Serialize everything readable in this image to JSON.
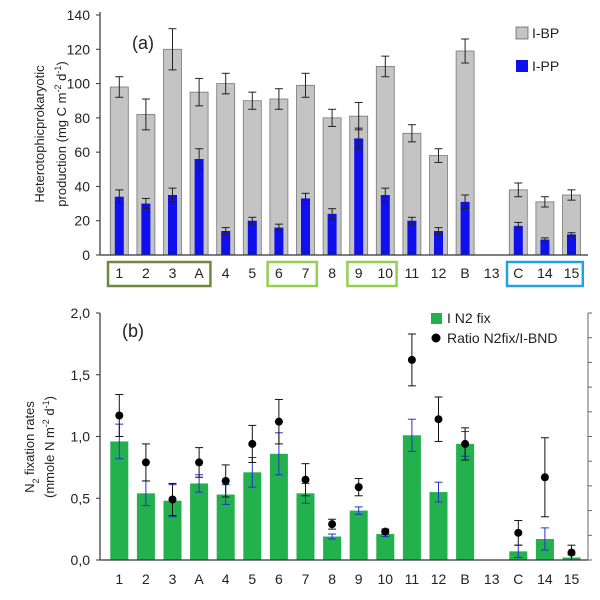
{
  "colors": {
    "ibp": "#c4c4c4",
    "ipp": "#1010ee",
    "n2fix": "#22b14c",
    "ratio": "#000000",
    "group_dark_green": "#6d8b3a",
    "group_light_green": "#92d050",
    "group_blue": "#21a3e0"
  },
  "chart_data": [
    {
      "panel": "(a)",
      "type": "bar",
      "ylabel_line1": "Heterotophicprokaryotic",
      "ylabel_line2": "production (mg C m",
      "ylabel_sup1": "-2",
      "ylabel_mid": " d",
      "ylabel_sup2": "-1",
      "ylabel_end": ")",
      "ylim": [
        0,
        140
      ],
      "yticks": [
        "0",
        "20",
        "40",
        "60",
        "80",
        "100",
        "120",
        "140"
      ],
      "categories": [
        "1",
        "2",
        "3",
        "A",
        "4",
        "5",
        "6",
        "7",
        "8",
        "9",
        "10",
        "11",
        "12",
        "B",
        "13",
        "C",
        "14",
        "15"
      ],
      "series": [
        {
          "name": "I-BP",
          "color_key": "ibp",
          "values": [
            98,
            82,
            120,
            95,
            100,
            90,
            91,
            99,
            80,
            81,
            110,
            71,
            58,
            119,
            null,
            38,
            31,
            35
          ],
          "errors": [
            6,
            9,
            12,
            8,
            6,
            5,
            6,
            7,
            5,
            8,
            6,
            5,
            4,
            7,
            null,
            4,
            3,
            3
          ]
        },
        {
          "name": "I-PP",
          "color_key": "ipp",
          "values": [
            34,
            30,
            35,
            56,
            14,
            20,
            16,
            33,
            24,
            68,
            35,
            20,
            14,
            31,
            null,
            17,
            9,
            12
          ],
          "errors": [
            4,
            3,
            4,
            6,
            2,
            2,
            2,
            3,
            3,
            6,
            4,
            2,
            2,
            4,
            null,
            2,
            1,
            1
          ]
        }
      ],
      "groups": [
        {
          "labels": [
            "1",
            "2",
            "3",
            "A"
          ],
          "color_key": "group_dark_green"
        },
        {
          "labels": [
            "6",
            "7"
          ],
          "color_key": "group_light_green"
        },
        {
          "labels": [
            "9",
            "10"
          ],
          "color_key": "group_light_green"
        },
        {
          "labels": [
            "C",
            "14",
            "15"
          ],
          "color_key": "group_blue"
        }
      ]
    },
    {
      "panel": "(b)",
      "type": "bar+scatter",
      "ylabel_line1_a": "N",
      "ylabel_line1_sub": "2",
      "ylabel_line1_b": " fixation rates",
      "ylabel_line2": "(mmole N m",
      "ylabel_sup1": "-2",
      "ylabel_mid": " d",
      "ylabel_sup2": "-1",
      "ylabel_end": ")",
      "ylim": [
        0,
        2.0
      ],
      "yticks": [
        "0,0",
        "0,5",
        "1,0",
        "1,5",
        "2,0"
      ],
      "categories": [
        "1",
        "2",
        "3",
        "A",
        "4",
        "5",
        "6",
        "7",
        "8",
        "9",
        "10",
        "11",
        "12",
        "B",
        "13",
        "C",
        "14",
        "15"
      ],
      "series": [
        {
          "name": "I N2 fix",
          "color_key": "n2fix",
          "kind": "bar",
          "values": [
            0.96,
            0.54,
            0.48,
            0.62,
            0.53,
            0.71,
            0.86,
            0.54,
            0.19,
            0.4,
            0.21,
            1.01,
            0.55,
            0.94,
            null,
            0.07,
            0.17,
            0.02
          ],
          "errors": [
            0.14,
            0.1,
            0.13,
            0.07,
            0.08,
            0.12,
            0.17,
            0.08,
            0.02,
            0.03,
            0.02,
            0.13,
            0.08,
            0.1,
            null,
            0.05,
            0.09,
            0.02
          ]
        },
        {
          "name": "Ratio N2fix/I-BND",
          "color_key": "ratio",
          "kind": "scatter",
          "values": [
            1.17,
            0.79,
            0.49,
            0.79,
            0.64,
            0.94,
            1.12,
            0.65,
            0.29,
            0.59,
            0.23,
            1.62,
            1.14,
            0.94,
            null,
            0.22,
            0.67,
            0.06
          ],
          "errors": [
            0.17,
            0.15,
            0.13,
            0.12,
            0.13,
            0.15,
            0.18,
            0.13,
            0.04,
            0.07,
            0.02,
            0.21,
            0.18,
            0.13,
            null,
            0.1,
            0.32,
            0.06
          ]
        }
      ]
    }
  ]
}
